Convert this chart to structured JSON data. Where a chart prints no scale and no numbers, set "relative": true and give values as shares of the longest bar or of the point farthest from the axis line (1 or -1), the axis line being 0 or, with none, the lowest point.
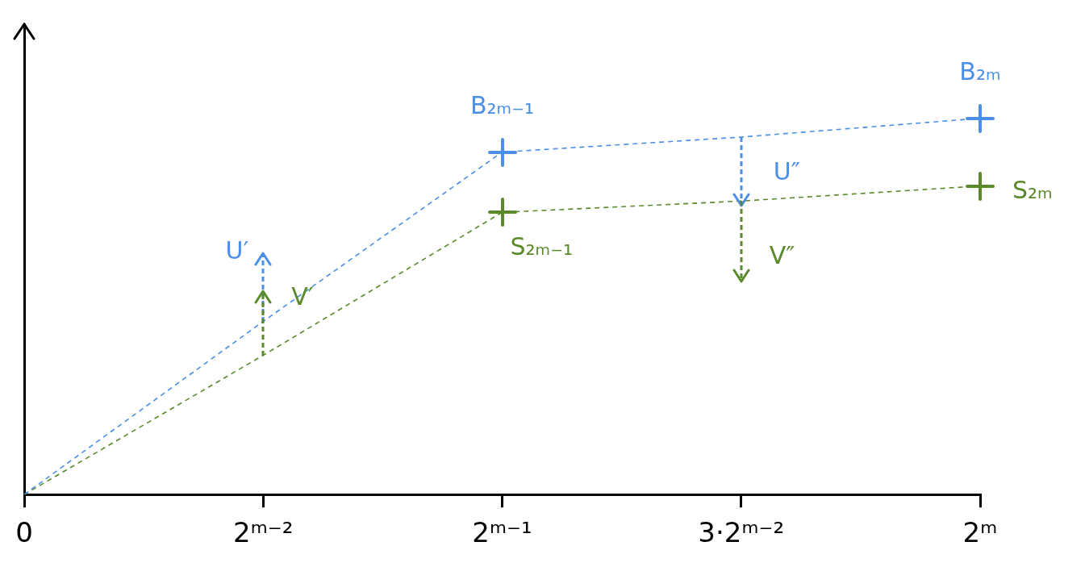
{
  "chart_data": {
    "type": "line",
    "relative": true,
    "categories": [
      "0",
      "2ᵐ⁻²",
      "2ᵐ⁻¹",
      "3·2ᵐ⁻²",
      "2ᵐ"
    ],
    "series": [
      {
        "color": "#4a8fe8",
        "values": [
          0,
          0.46,
          0.91,
          0.95,
          1
        ]
      },
      {
        "color": "#5a8a2a",
        "values": [
          0,
          0.37,
          0.75,
          0.78,
          0.82
        ]
      }
    ],
    "line_style": "dashed",
    "grid": false,
    "legend": false,
    "annotations": [
      {
        "text": "B₂ₘ₋₁",
        "x": "2ᵐ⁻¹",
        "y": 0.91
      },
      {
        "text": "B₂ₘ",
        "x": "2ᵐ",
        "y": 1
      },
      {
        "text": "S₂ₘ₋₁",
        "x": "2ᵐ⁻¹",
        "y": 0.75
      },
      {
        "text": "S₂ₘ",
        "x": "2ᵐ",
        "y": 0.82
      },
      {
        "text": "U′",
        "x": "2ᵐ⁻²",
        "y": 0.46
      },
      {
        "text": "V′",
        "x": "2ᵐ⁻²",
        "y": 0.37
      },
      {
        "text": "U″",
        "x": "3·2ᵐ⁻²",
        "y": 0.95
      },
      {
        "text": "V″",
        "x": "3·2ᵐ⁻²",
        "y": 0.78
      }
    ]
  }
}
